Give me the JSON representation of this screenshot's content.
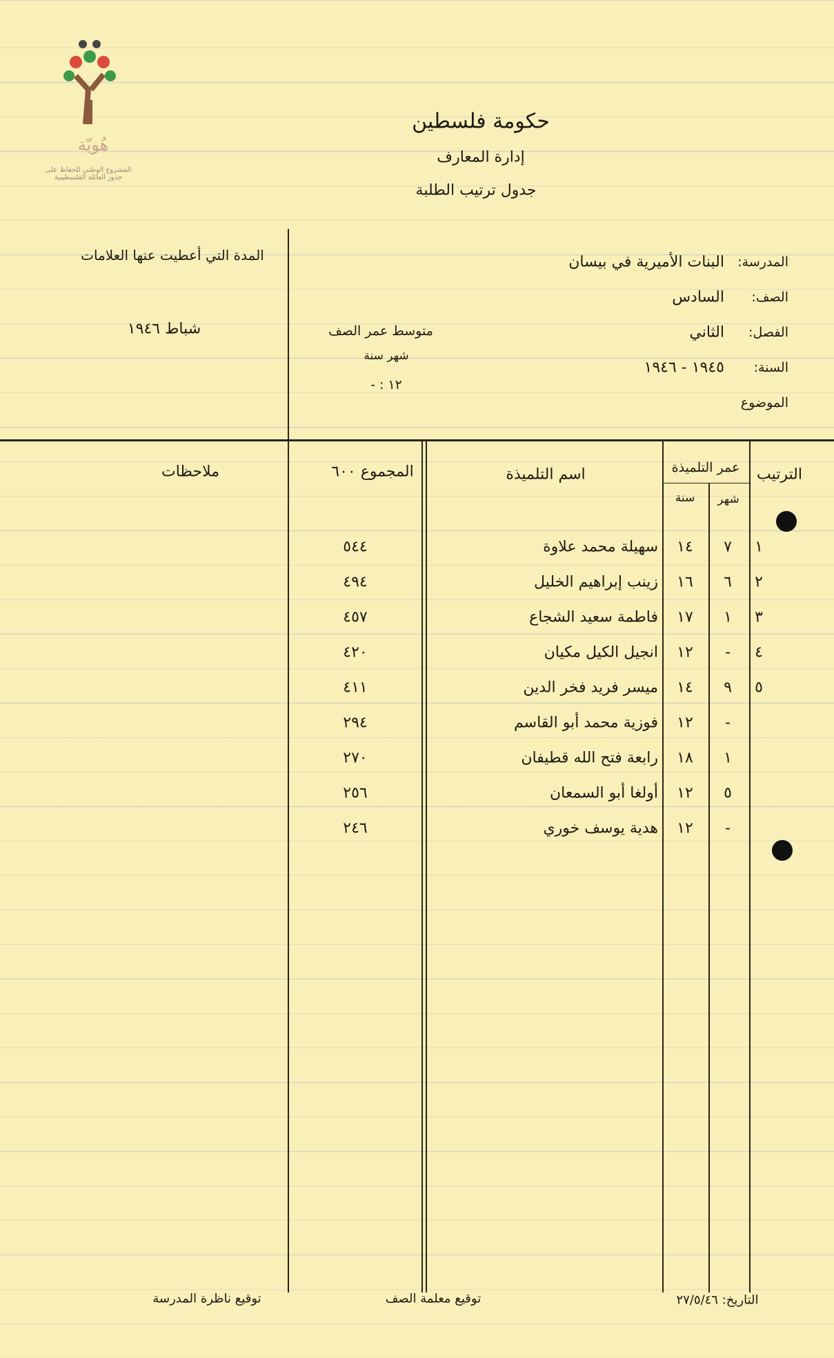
{
  "logo": {
    "name": "هُويّة",
    "tagline": "المشروع الوطني للحفاظ على جذور العائلة الفلسطينية"
  },
  "header": {
    "title": "حكومة فلسطين",
    "department": "إدارة المعارف",
    "form": "جدول ترتيب الطلبة"
  },
  "fields": [
    {
      "label": "المدرسة:",
      "value": "البنات الأميرية في بيسان"
    },
    {
      "label": "الصف:",
      "value": "السادس"
    },
    {
      "label": "الفصل:",
      "value": "الثاني"
    },
    {
      "label": "السنة:",
      "value": "١٩٤٥ - ١٩٤٦"
    },
    {
      "label": "الموضوع"
    }
  ],
  "average_age": {
    "label": "متوسط عمر الصف",
    "units": "شهر  سنة",
    "value": "١٢ : -"
  },
  "period": {
    "label": "المدة التي أعطيت عنها العلامات",
    "value": "شباط ١٩٤٦"
  },
  "table": {
    "headers": {
      "rank": "الترتيب",
      "age": "عمر التلميذة",
      "month": "شهر",
      "year": "سنة",
      "name": "اسم التلميذة",
      "total": "المجموع ٦٠٠",
      "notes": "ملاحظات"
    },
    "rows": [
      {
        "rank": "١",
        "month": "٧",
        "year": "١٤",
        "name": "سهيلة محمد علاوة",
        "total": "٥٤٤"
      },
      {
        "rank": "٢",
        "month": "٦",
        "year": "١٦",
        "name": "زينب إبراهيم الخليل",
        "total": "٤٩٤"
      },
      {
        "rank": "٣",
        "month": "١",
        "year": "١٧",
        "name": "فاطمة سعيد الشجاع",
        "total": "٤٥٧"
      },
      {
        "rank": "٤",
        "month": "-",
        "year": "١٢",
        "name": "انجيل الكيل مكيان",
        "total": "٤٢٠"
      },
      {
        "rank": "٥",
        "month": "٩",
        "year": "١٤",
        "name": "ميسر فريد فخر الدين",
        "total": "٤١١"
      },
      {
        "month": "-",
        "year": "١٢",
        "name": "فوزية محمد أبو القاسم",
        "total": "٢٩٤"
      },
      {
        "month": "١",
        "year": "١٨",
        "name": "رابعة فتح الله قطيفان",
        "total": "٢٧٠"
      },
      {
        "month": "٥",
        "year": "١٢",
        "name": "أولغا أبو السمعان",
        "total": "٢٥٦"
      },
      {
        "month": "-",
        "year": "١٢",
        "name": "هدية يوسف خوري",
        "total": "٢٤٦"
      }
    ]
  },
  "footer": {
    "date": "التاريخ: ٢٧/٥/٤٦",
    "teacher": "توقيع معلمة الصف",
    "principal": "توقيع ناظرة المدرسة"
  }
}
